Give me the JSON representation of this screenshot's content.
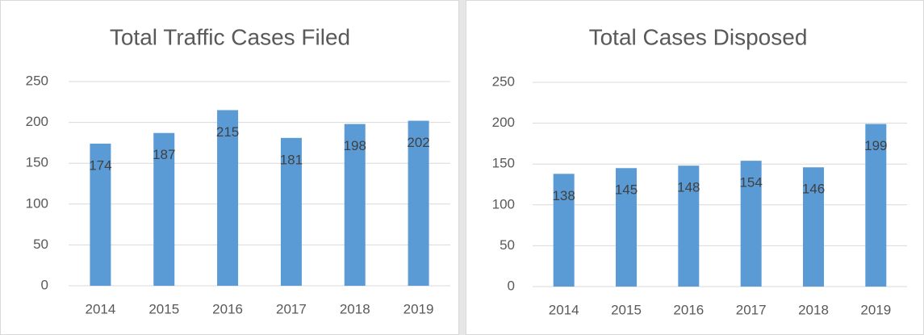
{
  "chart_data": [
    {
      "type": "bar",
      "title": "Total Traffic Cases Filed",
      "categories": [
        "2014",
        "2015",
        "2016",
        "2017",
        "2018",
        "2019"
      ],
      "values": [
        174,
        187,
        215,
        181,
        198,
        202
      ],
      "color": "#5b9bd5",
      "ylim": [
        0,
        250
      ],
      "yticks": [
        0,
        50,
        100,
        150,
        200,
        250
      ],
      "grid": true
    },
    {
      "type": "bar",
      "title": "Total Cases Disposed",
      "categories": [
        "2014",
        "2015",
        "2016",
        "2017",
        "2018",
        "2019"
      ],
      "values": [
        138,
        145,
        148,
        154,
        146,
        199
      ],
      "color": "#5b9bd5",
      "ylim": [
        0,
        250
      ],
      "yticks": [
        0,
        50,
        100,
        150,
        200,
        250
      ],
      "grid": true
    }
  ]
}
